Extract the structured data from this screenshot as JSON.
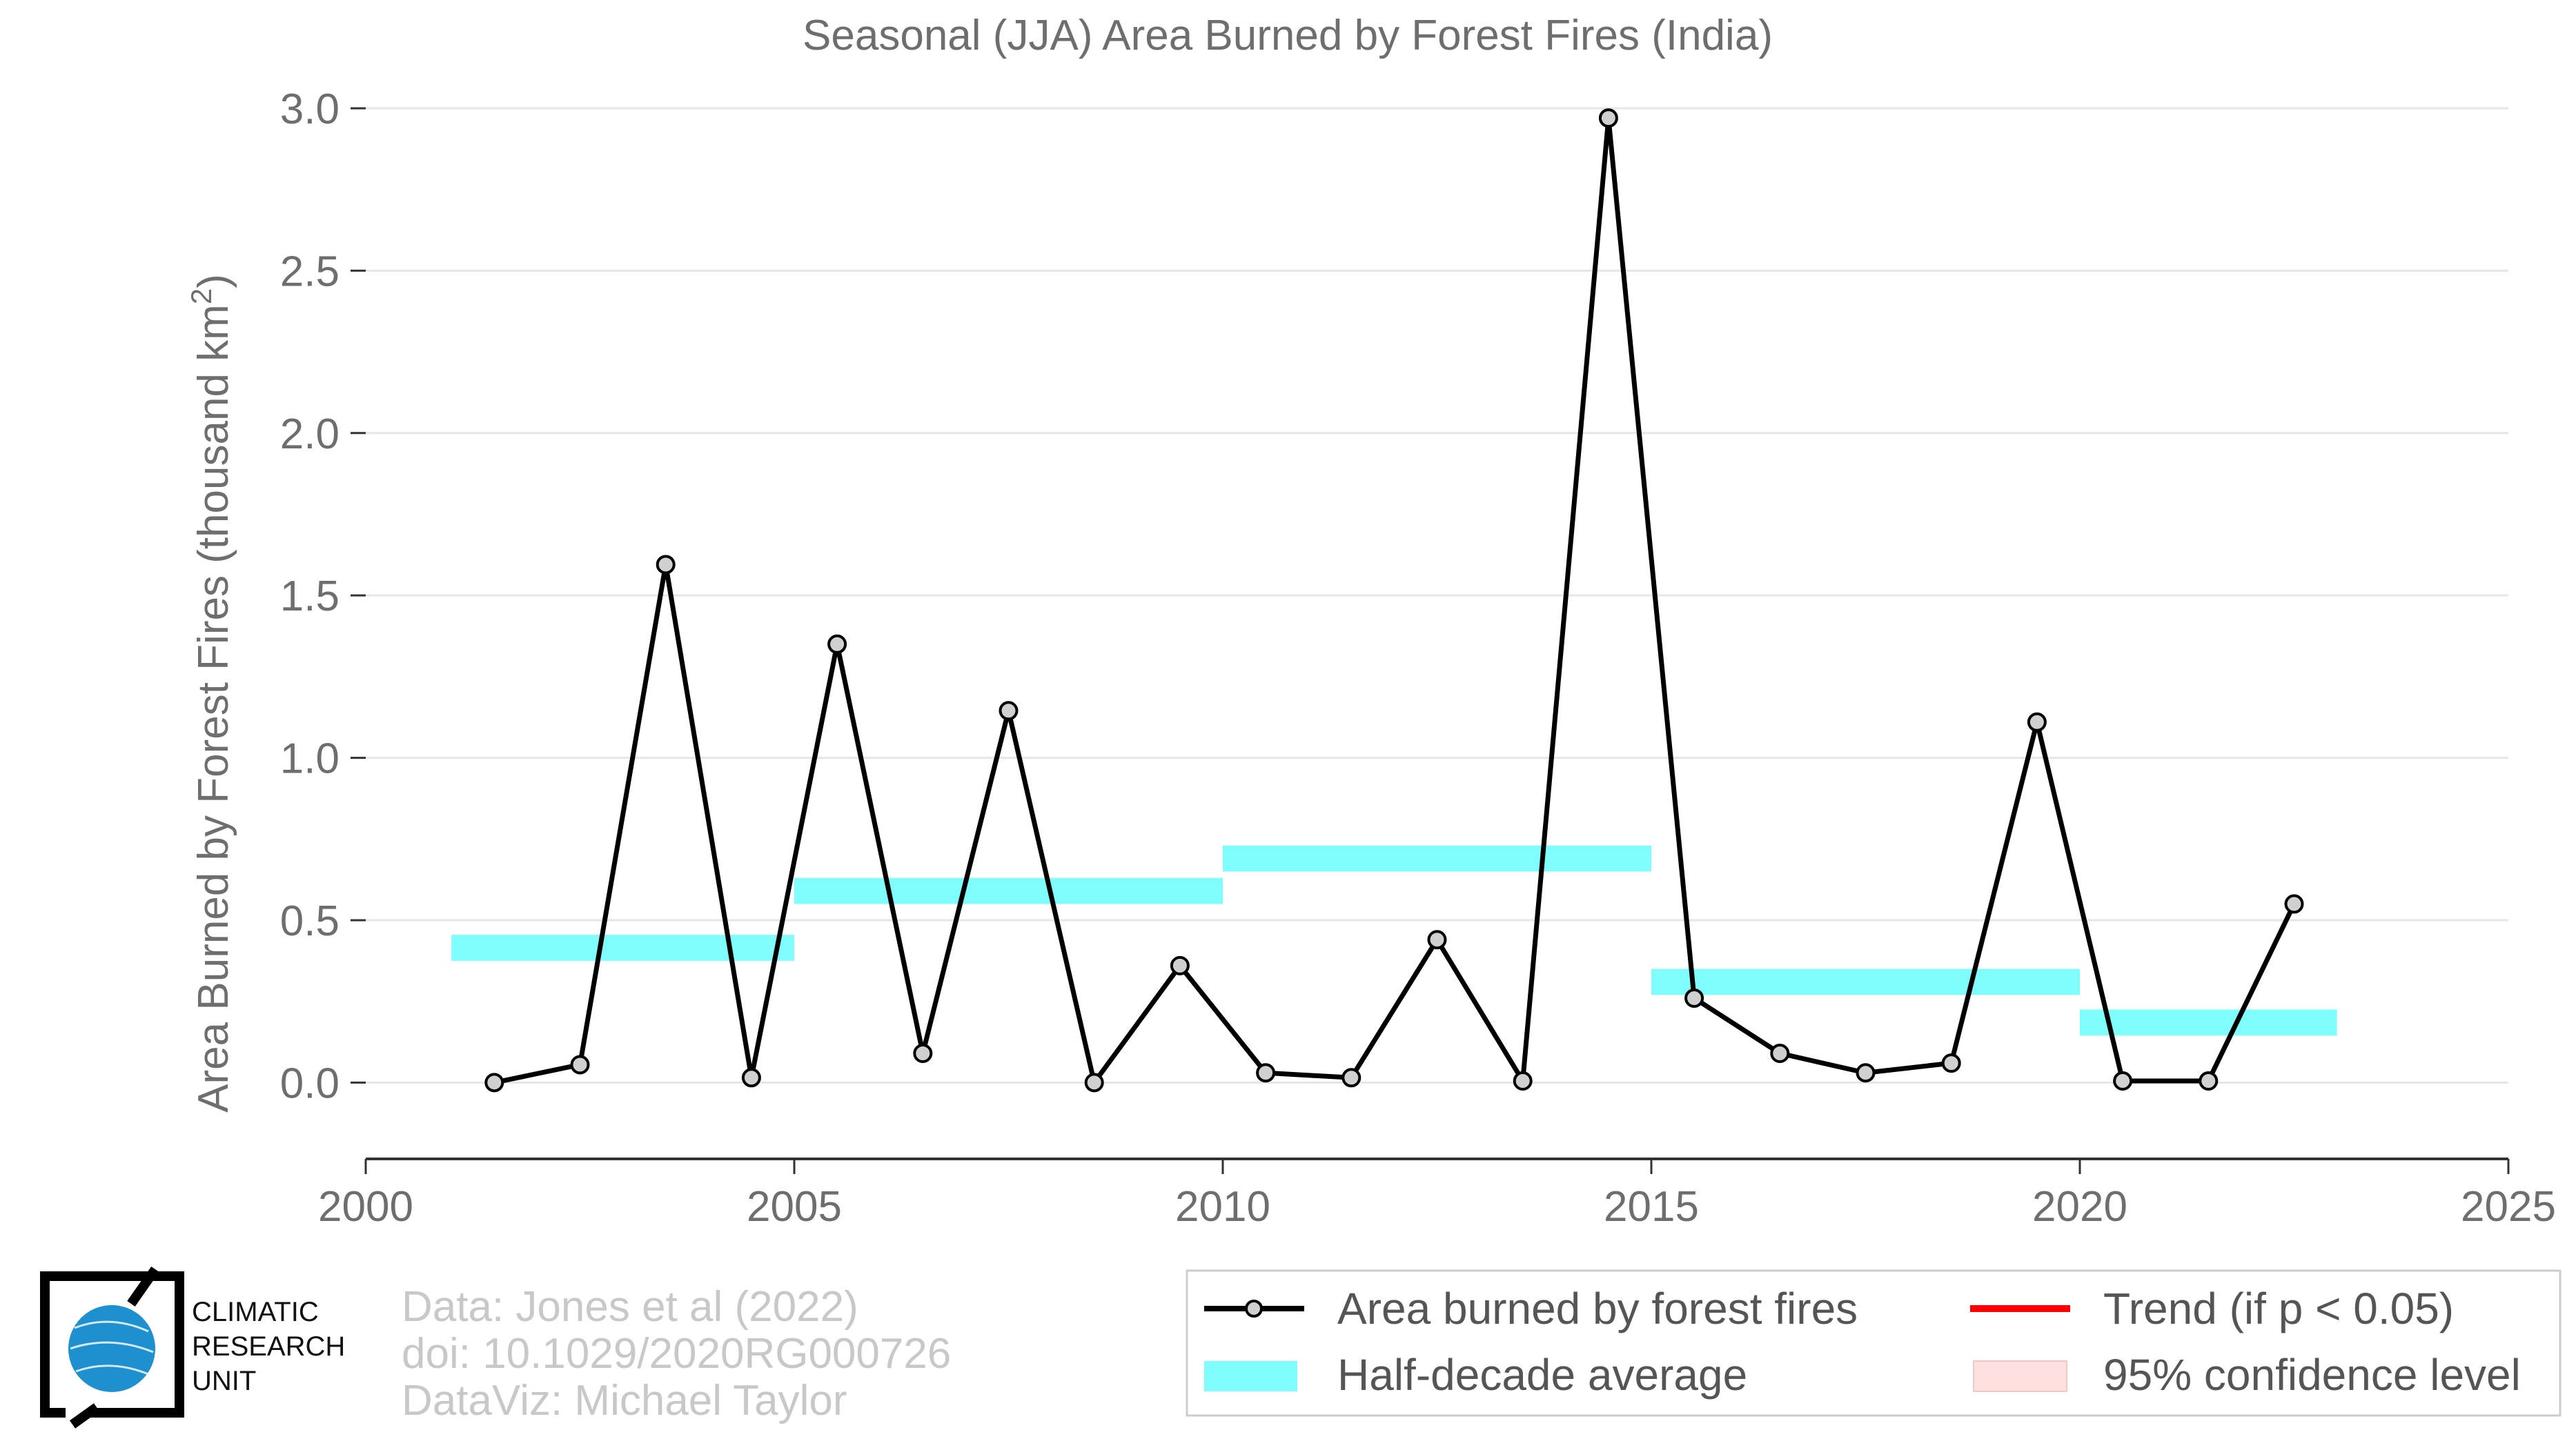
{
  "chart_data": {
    "type": "line",
    "title": "Seasonal (JJA) Area Burned by Forest Fires (India)",
    "ylabel": "Area Burned by Forest Fires (thousand km",
    "ylabel_sup": "2",
    "ylabel_end": ")",
    "xlim": [
      2000,
      2025
    ],
    "ylim": [
      -0.235,
      3.0
    ],
    "x_ticks": [
      2000,
      2005,
      2010,
      2015,
      2020,
      2025
    ],
    "y_ticks": [
      0.0,
      0.5,
      1.0,
      1.5,
      2.0,
      2.5,
      3.0
    ],
    "y_tick_labels": [
      "0.0",
      "0.5",
      "1.0",
      "1.5",
      "2.0",
      "2.5",
      "3.0"
    ],
    "grid": "horizontal",
    "series": [
      {
        "name": "Area burned by forest fires",
        "color": "#000000",
        "marker_color": "#d0d0d0",
        "x": [
          2001.5,
          2002.5,
          2003.5,
          2004.5,
          2005.5,
          2006.5,
          2007.5,
          2008.5,
          2009.5,
          2010.5,
          2011.5,
          2012.5,
          2013.5,
          2014.5,
          2015.5,
          2016.5,
          2017.5,
          2018.5,
          2019.5,
          2020.5,
          2021.5,
          2022.5
        ],
        "values": [
          0.0,
          0.055,
          1.595,
          0.015,
          1.35,
          0.09,
          1.145,
          0.0,
          0.36,
          0.03,
          0.015,
          0.44,
          0.005,
          2.97,
          0.26,
          0.09,
          0.03,
          0.06,
          1.11,
          0.005,
          0.005,
          0.55
        ]
      }
    ],
    "half_decade_average": {
      "name": "Half-decade average",
      "color": "#7ffcfc",
      "segments": [
        {
          "x_start": 2001,
          "x_end": 2005,
          "value": 0.415
        },
        {
          "x_start": 2005,
          "x_end": 2010,
          "value": 0.59
        },
        {
          "x_start": 2010,
          "x_end": 2015,
          "value": 0.69
        },
        {
          "x_start": 2015,
          "x_end": 2020,
          "value": 0.31
        },
        {
          "x_start": 2020,
          "x_end": 2023,
          "value": 0.185
        }
      ]
    },
    "legend": {
      "placement": "bottom-right",
      "entries": [
        {
          "label": "Area burned by forest fires",
          "kind": "line-marker",
          "color": "#000000"
        },
        {
          "label": "Trend (if p < 0.05)",
          "kind": "line",
          "color": "#ff0000"
        },
        {
          "label": "Half-decade average",
          "kind": "band",
          "color": "#7ffcfc"
        },
        {
          "label": "95% confidence level",
          "kind": "band",
          "color": "#ffe0e0"
        }
      ]
    }
  },
  "credits": {
    "line1": "Data: Jones et al (2022)",
    "line2": "doi: 10.1029/2020RG000726",
    "line3": "DataViz: Michael Taylor"
  },
  "logo": {
    "line1": "CLIMATIC",
    "line2": "RESEARCH",
    "line3": "UNIT",
    "globe_color": "#1e90d0"
  }
}
